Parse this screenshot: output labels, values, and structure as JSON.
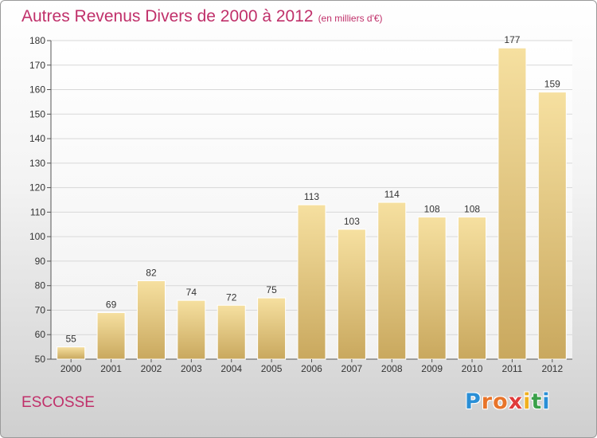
{
  "header": {
    "title": "Autres Revenus Divers de 2000 à 2012",
    "subtitle": "(en milliers d'€)"
  },
  "footer": {
    "region": "ESCOSSE",
    "logo_letters": [
      "P",
      "r",
      "o",
      "x",
      "i",
      "t",
      "i"
    ],
    "logo_colors": [
      "#2a8fd6",
      "#e8742a",
      "#e8742a",
      "#e03a3a",
      "#f0b01e",
      "#3aa04a",
      "#2a8fd6"
    ]
  },
  "colors": {
    "title": "#c0306a",
    "bar_light": "#f6e0a0",
    "bar_dark": "#c9a85e",
    "grid": "#d8d8d8"
  },
  "chart_data": {
    "type": "bar",
    "categories": [
      "2000",
      "2001",
      "2002",
      "2003",
      "2004",
      "2005",
      "2006",
      "2007",
      "2008",
      "2009",
      "2010",
      "2011",
      "2012"
    ],
    "values": [
      55,
      69,
      82,
      74,
      72,
      75,
      113,
      103,
      114,
      108,
      108,
      177,
      159
    ],
    "ylim": [
      50,
      180
    ],
    "yticks": [
      50,
      60,
      70,
      80,
      90,
      100,
      110,
      120,
      130,
      140,
      150,
      160,
      170,
      180
    ],
    "grid": true
  }
}
